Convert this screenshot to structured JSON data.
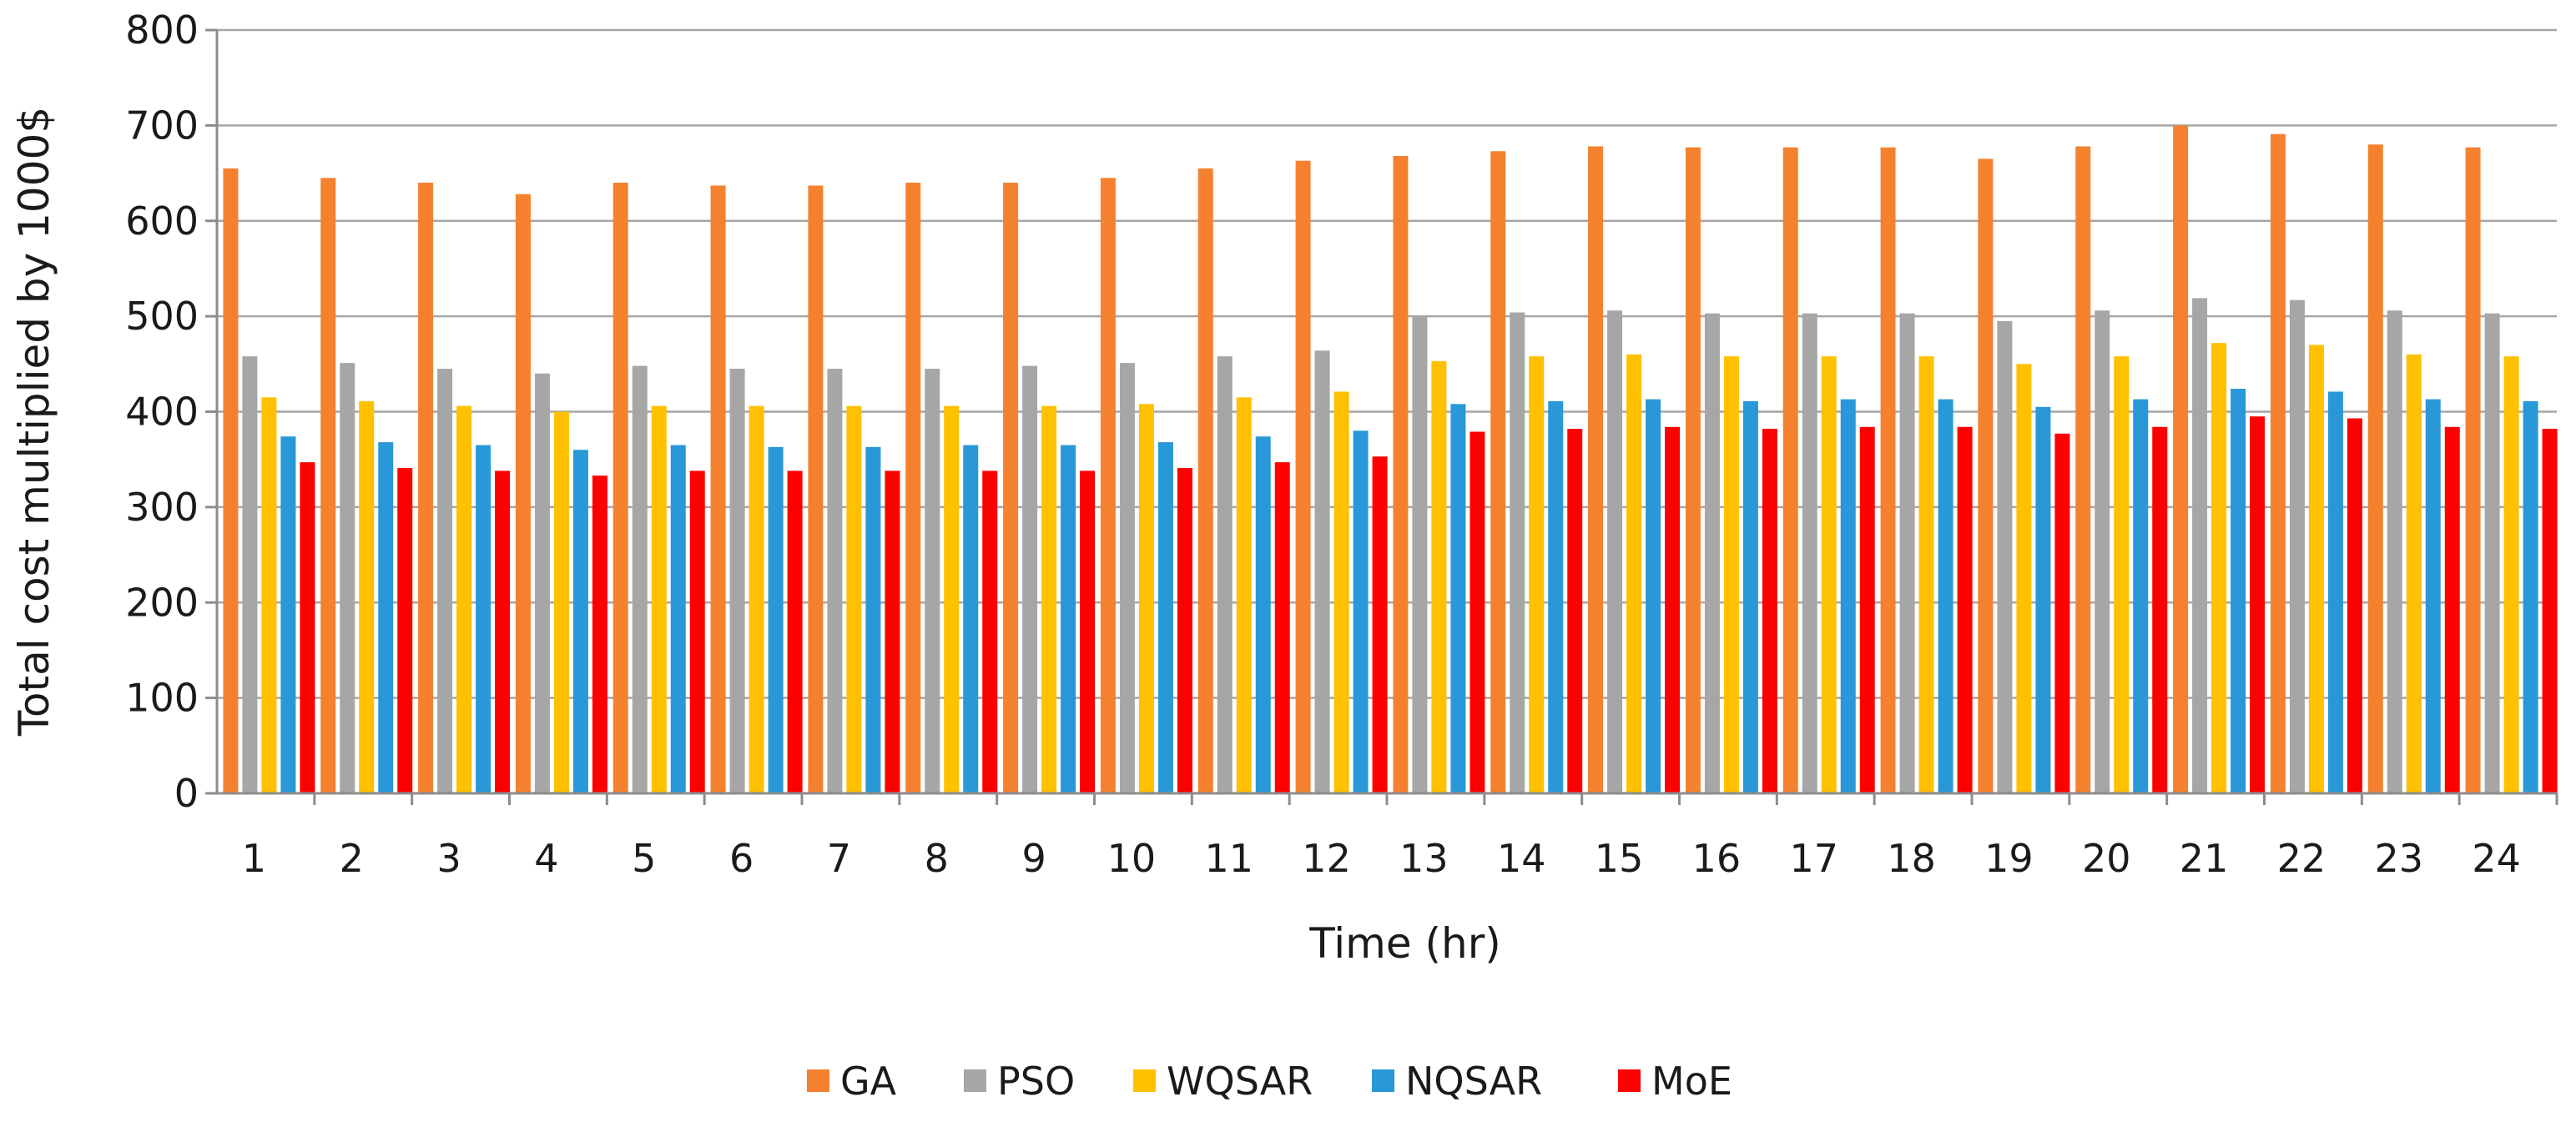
{
  "chart_data": {
    "type": "bar",
    "title": "",
    "xlabel": "Time (hr)",
    "ylabel": "Total cost multiplied by  1000$",
    "ylim": [
      0,
      800
    ],
    "yticks": [
      0,
      100,
      200,
      300,
      400,
      500,
      600,
      700,
      800
    ],
    "grid": true,
    "legend_position": "bottom",
    "categories": [
      "1",
      "2",
      "3",
      "4",
      "5",
      "6",
      "7",
      "8",
      "9",
      "10",
      "11",
      "12",
      "13",
      "14",
      "15",
      "16",
      "17",
      "18",
      "19",
      "20",
      "21",
      "22",
      "23",
      "24"
    ],
    "series": [
      {
        "name": "GA",
        "color": "#f5812f",
        "values": [
          655,
          645,
          640,
          628,
          640,
          637,
          637,
          640,
          640,
          645,
          655,
          663,
          668,
          673,
          678,
          677,
          677,
          677,
          665,
          678,
          700,
          691,
          680,
          677
        ]
      },
      {
        "name": "PSO",
        "color": "#a6a6a6",
        "values": [
          458,
          451,
          445,
          440,
          448,
          445,
          445,
          445,
          448,
          451,
          458,
          464,
          500,
          504,
          506,
          503,
          503,
          503,
          495,
          506,
          519,
          517,
          506,
          503
        ]
      },
      {
        "name": "WQSAR",
        "color": "#ffc000",
        "values": [
          415,
          411,
          406,
          400,
          406,
          406,
          406,
          406,
          406,
          408,
          415,
          421,
          453,
          458,
          460,
          458,
          458,
          458,
          450,
          458,
          472,
          470,
          460,
          458
        ]
      },
      {
        "name": "NQSAR",
        "color": "#2898d8",
        "values": [
          374,
          368,
          365,
          360,
          365,
          363,
          363,
          365,
          365,
          368,
          374,
          380,
          408,
          411,
          413,
          411,
          413,
          413,
          405,
          413,
          424,
          421,
          413,
          411
        ]
      },
      {
        "name": "MoE",
        "color": "#ff0000",
        "values": [
          347,
          341,
          338,
          333,
          338,
          338,
          338,
          338,
          338,
          341,
          347,
          353,
          379,
          382,
          384,
          382,
          384,
          384,
          377,
          384,
          395,
          393,
          384,
          382
        ]
      }
    ]
  }
}
